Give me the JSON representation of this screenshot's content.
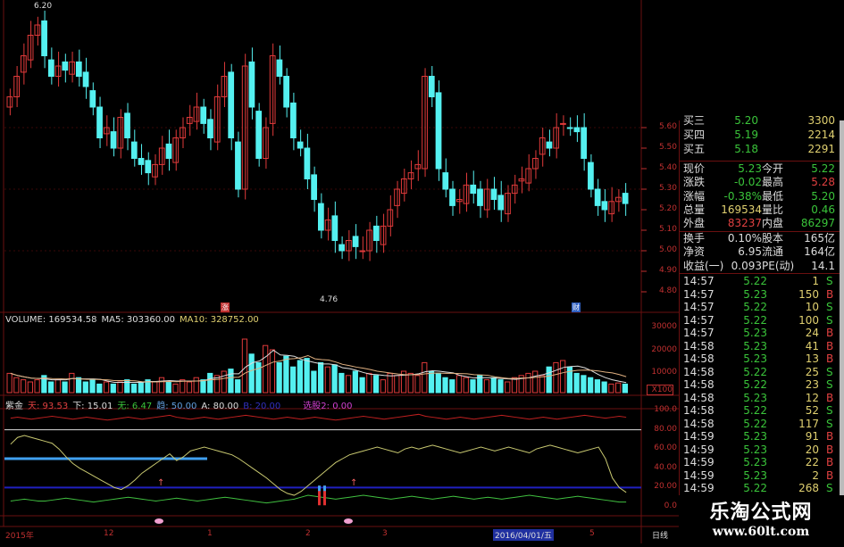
{
  "kline": {
    "high_label": "6.20",
    "low_label": "4.76",
    "price_ticks": [
      "5.60",
      "5.50",
      "5.40",
      "5.30",
      "5.20",
      "5.10",
      "5.00",
      "4.90",
      "4.80"
    ],
    "closes": [
      5.75,
      5.85,
      5.95,
      6.05,
      6.1,
      5.95,
      5.85,
      5.9,
      5.88,
      5.92,
      5.85,
      5.8,
      5.7,
      5.55,
      5.6,
      5.5,
      5.65,
      5.55,
      5.45,
      5.42,
      5.38,
      5.42,
      5.5,
      5.45,
      5.55,
      5.6,
      5.65,
      5.7,
      5.62,
      5.55,
      5.75,
      5.85,
      5.55,
      5.3,
      5.9,
      5.7,
      5.45,
      5.6,
      5.95,
      5.85,
      5.7,
      5.55,
      5.5,
      5.35,
      5.25,
      5.1,
      5.15,
      5.05,
      5.0,
      5.05,
      5.02,
      5.0,
      5.1,
      5.05,
      5.12,
      5.2,
      5.3,
      5.35,
      5.38,
      5.42,
      5.85,
      5.75,
      5.4,
      5.3,
      5.22,
      5.25,
      5.32,
      5.28,
      5.22,
      5.3,
      5.25,
      5.2,
      5.28,
      5.32,
      5.35,
      5.4,
      5.45,
      5.55,
      5.5,
      5.6,
      5.62,
      5.6,
      5.58,
      5.45,
      5.3,
      5.22,
      5.2,
      5.24,
      5.26,
      5.23
    ],
    "marker_left": "涨",
    "marker_right": "财",
    "colors": {
      "up": "#e03a3a",
      "down": "#54f0f0"
    }
  },
  "volume": {
    "label": "VOLUME: 169534.58",
    "ma5": "MA5: 303360.00",
    "ma10": "MA10: 328752.00",
    "ticks": [
      "30000",
      "20000",
      "10000"
    ],
    "unit": "X100",
    "values": [
      9000,
      7000,
      6000,
      5000,
      6000,
      8000,
      5000,
      6000,
      5000,
      9000,
      7000,
      5000,
      6000,
      4000,
      5000,
      4000,
      5000,
      6000,
      4000,
      5000,
      6000,
      5000,
      7000,
      5000,
      4000,
      6000,
      5000,
      7000,
      6000,
      9000,
      8000,
      10000,
      11000,
      6000,
      25000,
      18000,
      14000,
      22000,
      20000,
      14000,
      17000,
      12000,
      15000,
      16000,
      10000,
      14000,
      12000,
      13000,
      9000,
      8000,
      10000,
      7000,
      9000,
      8000,
      6000,
      9000,
      8000,
      10000,
      9000,
      8000,
      14000,
      10000,
      9000,
      7000,
      6000,
      8000,
      7000,
      6000,
      8000,
      6000,
      7000,
      6000,
      5000,
      7000,
      8000,
      9000,
      10000,
      8000,
      12000,
      14000,
      15000,
      12000,
      9000,
      8000,
      7000,
      6000,
      5000,
      4000,
      4500,
      4000
    ]
  },
  "indicator": {
    "name": "紫金",
    "v1": "天: 93.53",
    "v2": "下: 15.01",
    "v3": "无: 6.47",
    "v4": "趋: 50.00",
    "v5": "A: 80.00",
    "v6": "B: 20.00",
    "v7": "选股2: 0.00",
    "ticks": [
      "100.0",
      "80.00",
      "60.00",
      "40.00",
      "20.00",
      "0.0"
    ],
    "yellow": [
      65,
      72,
      74,
      72,
      70,
      68,
      66,
      60,
      52,
      45,
      40,
      36,
      32,
      28,
      24,
      20,
      18,
      22,
      28,
      35,
      40,
      45,
      50,
      55,
      48,
      52,
      58,
      60,
      62,
      60,
      58,
      56,
      54,
      50,
      45,
      40,
      35,
      30,
      24,
      18,
      14,
      12,
      16,
      22,
      28,
      34,
      40,
      46,
      50,
      54,
      56,
      58,
      60,
      62,
      60,
      58,
      56,
      60,
      62,
      60,
      62,
      64,
      62,
      60,
      58,
      56,
      58,
      60,
      62,
      60,
      58,
      60,
      62,
      60,
      58,
      56,
      60,
      62,
      64,
      62,
      60,
      58,
      56,
      58,
      60,
      62,
      50,
      30,
      20,
      15
    ],
    "green": [
      6,
      7,
      8,
      7,
      6,
      6,
      7,
      8,
      9,
      8,
      7,
      6,
      5,
      6,
      7,
      8,
      9,
      10,
      9,
      8,
      7,
      6,
      7,
      8,
      9,
      8,
      7,
      6,
      7,
      8,
      9,
      10,
      9,
      8,
      7,
      6,
      5,
      4,
      5,
      6,
      7,
      8,
      10,
      12,
      11,
      10,
      9,
      8,
      9,
      10,
      11,
      12,
      11,
      10,
      9,
      8,
      9,
      10,
      11,
      10,
      9,
      8,
      9,
      10,
      11,
      10,
      9,
      8,
      9,
      10,
      9,
      8,
      9,
      10,
      11,
      12,
      11,
      10,
      9,
      8,
      9,
      10,
      11,
      10,
      9,
      8,
      7,
      6,
      5,
      5
    ],
    "red": [
      92,
      93,
      92,
      91,
      92,
      93,
      94,
      93,
      92,
      91,
      92,
      93,
      92,
      91,
      90,
      91,
      92,
      93,
      92,
      91,
      92,
      93,
      94,
      95,
      93,
      92,
      91,
      92,
      93,
      92,
      91,
      92,
      93,
      94,
      95,
      94,
      93,
      92,
      91,
      92,
      93,
      92,
      91,
      92,
      93,
      92,
      91,
      90,
      91,
      92,
      93,
      94,
      93,
      92,
      91,
      92,
      93,
      94,
      95,
      96,
      94,
      93,
      92,
      91,
      92,
      93,
      92,
      91,
      92,
      93,
      94,
      95,
      94,
      93,
      92,
      91,
      92,
      93,
      92,
      91,
      92,
      93,
      94,
      95,
      94,
      93,
      92,
      93,
      94,
      93
    ]
  },
  "time_axis": {
    "labels": [
      "2015年",
      "12",
      "1",
      "2",
      "3",
      "5"
    ],
    "cursor_date": "2016/04/01/五",
    "period": "日线"
  },
  "quote": {
    "bids": [
      {
        "label": "买三",
        "price": "5.20",
        "vol": "3300"
      },
      {
        "label": "买四",
        "price": "5.19",
        "vol": "2214"
      },
      {
        "label": "买五",
        "price": "5.18",
        "vol": "2291"
      }
    ],
    "stats": [
      {
        "l1": "现价",
        "v1": "5.23",
        "c1": "g",
        "l2": "今开",
        "v2": "5.22",
        "c2": "g"
      },
      {
        "l1": "涨跌",
        "v1": "-0.02",
        "c1": "g",
        "l2": "最高",
        "v2": "5.28",
        "c2": "r"
      },
      {
        "l1": "涨幅",
        "v1": "-0.38%",
        "c1": "g",
        "l2": "最低",
        "v2": "5.20",
        "c2": "g"
      },
      {
        "l1": "总量",
        "v1": "169534",
        "c1": "y",
        "l2": "量比",
        "v2": "0.46",
        "c2": "g"
      },
      {
        "l1": "外盘",
        "v1": "83237",
        "c1": "r",
        "l2": "内盘",
        "v2": "86297",
        "c2": "g"
      }
    ],
    "fundamentals": [
      {
        "l1": "换手",
        "v1": "0.10%",
        "l2": "股本",
        "v2": "165亿"
      },
      {
        "l1": "净资",
        "v1": "6.95",
        "l2": "流通",
        "v2": "164亿"
      },
      {
        "l1": "收益(一)",
        "v1": "0.093",
        "l2": "PE(动)",
        "v2": "14.1"
      }
    ],
    "trades": [
      {
        "t": "14:57",
        "p": "5.22",
        "v": "1",
        "s": "S"
      },
      {
        "t": "14:57",
        "p": "5.23",
        "v": "150",
        "s": "B"
      },
      {
        "t": "14:57",
        "p": "5.22",
        "v": "10",
        "s": "S"
      },
      {
        "t": "14:57",
        "p": "5.22",
        "v": "100",
        "s": "S"
      },
      {
        "t": "14:57",
        "p": "5.23",
        "v": "24",
        "s": "B"
      },
      {
        "t": "14:58",
        "p": "5.23",
        "v": "41",
        "s": "B"
      },
      {
        "t": "14:58",
        "p": "5.23",
        "v": "13",
        "s": "B"
      },
      {
        "t": "14:58",
        "p": "5.22",
        "v": "25",
        "s": "S"
      },
      {
        "t": "14:58",
        "p": "5.22",
        "v": "23",
        "s": "S"
      },
      {
        "t": "14:58",
        "p": "5.23",
        "v": "12",
        "s": "B"
      },
      {
        "t": "14:58",
        "p": "5.22",
        "v": "52",
        "s": "S"
      },
      {
        "t": "14:58",
        "p": "5.22",
        "v": "117",
        "s": "S"
      },
      {
        "t": "14:59",
        "p": "5.23",
        "v": "91",
        "s": "B"
      },
      {
        "t": "14:59",
        "p": "5.23",
        "v": "20",
        "s": "B"
      },
      {
        "t": "14:59",
        "p": "5.23",
        "v": "22",
        "s": "B"
      },
      {
        "t": "14:59",
        "p": "5.23",
        "v": "2",
        "s": "B"
      },
      {
        "t": "14:59",
        "p": "5.22",
        "v": "268",
        "s": "S"
      }
    ]
  },
  "logo": {
    "name": "乐淘公式网",
    "url": "www.60lt.com"
  }
}
